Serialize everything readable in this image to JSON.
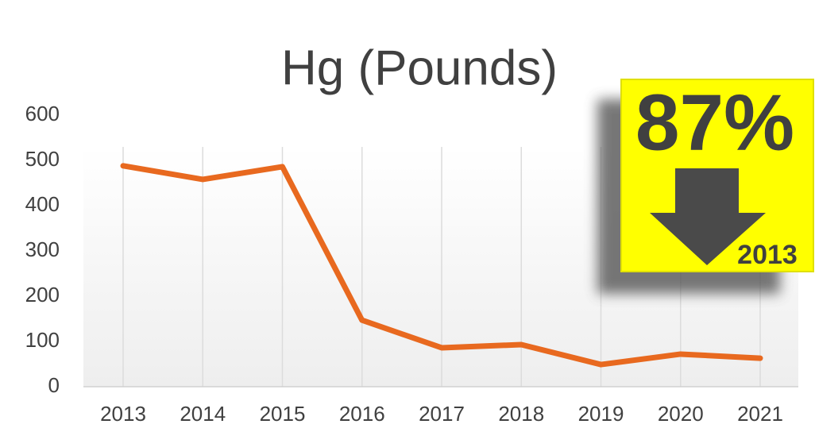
{
  "chart_data": {
    "type": "line",
    "title": "Hg (Pounds)",
    "categories": [
      "2013",
      "2014",
      "2015",
      "2016",
      "2017",
      "2018",
      "2019",
      "2020",
      "2021"
    ],
    "series": [
      {
        "name": "Hg (Pounds)",
        "color": "#e8691f",
        "values": [
          488,
          458,
          486,
          147,
          86,
          93,
          49,
          72,
          63
        ]
      }
    ],
    "ylim": [
      0,
      600
    ],
    "yticks": [
      0,
      100,
      200,
      300,
      400,
      500,
      600
    ],
    "grid": true,
    "annotation": {
      "percent": "87%",
      "year": "2013"
    }
  }
}
